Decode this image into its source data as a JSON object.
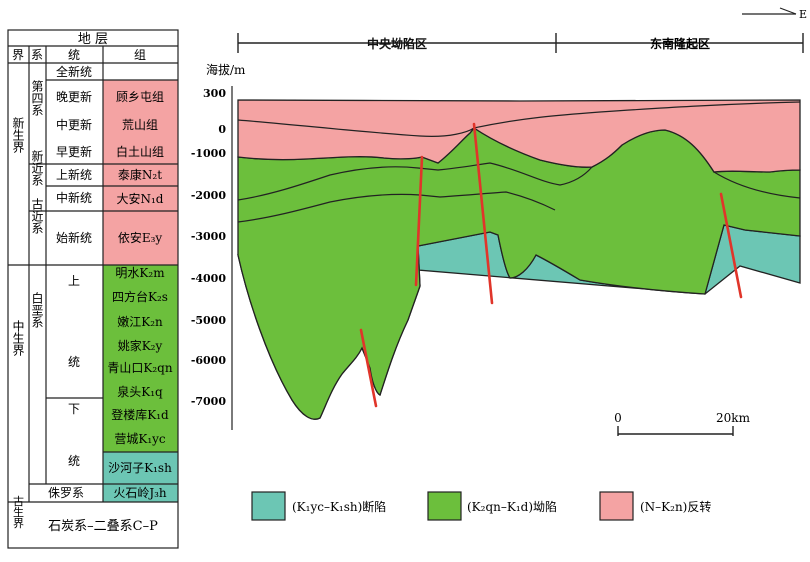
{
  "strat_table": {
    "header": {
      "top": "地   层",
      "era": "界",
      "system": "系",
      "series": "统",
      "formation": "组"
    },
    "eras": [
      "新生界",
      "中生界",
      "古生界"
    ],
    "systems": [
      "第四系",
      "新近系",
      "古近系",
      "白垩系",
      "侏罗系"
    ],
    "series": [
      "全新统",
      "晚更新",
      "中更新",
      "早更新",
      "上新统",
      "中新统",
      "始新统",
      "上",
      "统",
      "下",
      "统"
    ],
    "formations": [
      "顾乡屯组",
      "荒山组",
      "白土山组",
      "泰康N₂t",
      "大安N₁d",
      "依安E₃y",
      "明水K₂m",
      "四方台K₂s",
      "嫩江K₂n",
      "姚家K₂y",
      "青山口K₂qn",
      "泉头K₁q",
      "登楼库K₁d",
      "营城K₁yc",
      "沙河子K₁sh",
      "火石岭J₃h"
    ],
    "bottom": "石炭系–二叠系C–P"
  },
  "section": {
    "direction": "E",
    "regions": [
      "中央坳陷区",
      "东南隆起区"
    ],
    "axis_title": "海拔/m",
    "ticks": [
      "300",
      "0",
      "-1000",
      "-2000",
      "-3000",
      "-4000",
      "-5000",
      "-6000",
      "-7000"
    ],
    "scale_labels": [
      "0",
      "20km"
    ]
  },
  "legend": [
    {
      "label": "(K₁yc–K₁sh)断陷",
      "color": "#6cc6b4"
    },
    {
      "label": "(K₂qn–K₁d)坳陷",
      "color": "#6cbf3c"
    },
    {
      "label": "(N–K₂n)反转",
      "color": "#f4a3a3"
    }
  ],
  "colors": {
    "rift": "#6cc6b4",
    "depression": "#6cbf3c",
    "inversion": "#f4a3a3",
    "fault": "#e0352a"
  }
}
